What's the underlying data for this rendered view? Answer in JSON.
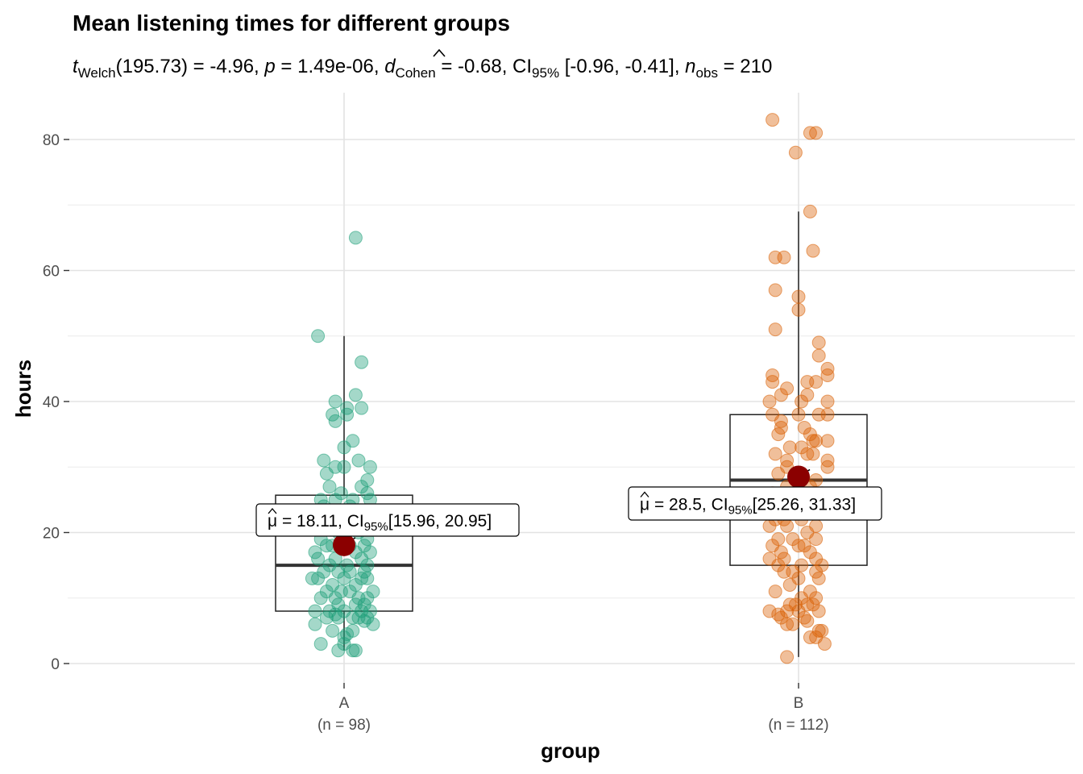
{
  "chart_data": {
    "type": "box-violin-scatter",
    "title": "Mean listening times for different groups",
    "subtitle": {
      "t_symbol": "t",
      "t_sub": "Welch",
      "t_df_stat": "(195.73) = -4.96, ",
      "p_symbol": "p",
      "p_value": " = 1.49e-06, ",
      "d_symbol": "d",
      "d_sub": "Cohen",
      "d_value": " = -0.68, CI",
      "ci_sub": "95%",
      "ci_value": " [-0.96, -0.41], ",
      "n_symbol": "n",
      "n_sub": "obs",
      "n_value": " = 210"
    },
    "xlabel": "group",
    "ylabel": "hours",
    "ylim": [
      -2,
      87
    ],
    "y_ticks": [
      0,
      20,
      40,
      60,
      80
    ],
    "grid": true,
    "colors": {
      "A": "#1b9e77",
      "B": "#d95f02",
      "mean": "#8b0000"
    },
    "groups": [
      {
        "name": "A",
        "n_label": "(n = 98)",
        "box": {
          "min": 2,
          "q1": 8,
          "median": 15,
          "q3": 25.7,
          "max": 50
        },
        "mean": 18.11,
        "label": {
          "mu": "μ",
          "eq": " = 18.11, CI",
          "ci_sub": "95%",
          "ci": "[15.96, 20.95]"
        },
        "points": [
          [
            -0.09,
            50
          ],
          [
            0.04,
            65
          ],
          [
            0.06,
            46
          ],
          [
            -0.03,
            40
          ],
          [
            0.04,
            41
          ],
          [
            -0.04,
            38
          ],
          [
            0.01,
            39
          ],
          [
            0.06,
            39
          ],
          [
            -0.03,
            37
          ],
          [
            0.01,
            38
          ],
          [
            0.03,
            34
          ],
          [
            0.0,
            33
          ],
          [
            -0.07,
            31
          ],
          [
            0.05,
            31
          ],
          [
            0.0,
            30
          ],
          [
            -0.03,
            30
          ],
          [
            0.09,
            30
          ],
          [
            -0.06,
            29
          ],
          [
            0.08,
            28
          ],
          [
            0.06,
            27
          ],
          [
            -0.05,
            27
          ],
          [
            -0.01,
            26
          ],
          [
            0.08,
            26
          ],
          [
            0.09,
            25
          ],
          [
            -0.03,
            25
          ],
          [
            0.03,
            25
          ],
          [
            -0.08,
            25
          ],
          [
            -0.07,
            24
          ],
          [
            0.02,
            24
          ],
          [
            0.07,
            23
          ],
          [
            -0.03,
            23
          ],
          [
            -0.08,
            22
          ],
          [
            0.02,
            22
          ],
          [
            0.07,
            21
          ],
          [
            -0.06,
            21
          ],
          [
            -0.02,
            20
          ],
          [
            0.05,
            20
          ],
          [
            -0.08,
            19
          ],
          [
            0.08,
            19
          ],
          [
            0.0,
            19
          ],
          [
            -0.04,
            18
          ],
          [
            0.02,
            18
          ],
          [
            0.07,
            18
          ],
          [
            -0.06,
            18
          ],
          [
            -0.1,
            17
          ],
          [
            0.04,
            17
          ],
          [
            0.09,
            17
          ],
          [
            -0.03,
            16
          ],
          [
            0.06,
            16
          ],
          [
            -0.09,
            16
          ],
          [
            0.01,
            15
          ],
          [
            -0.05,
            15
          ],
          [
            0.08,
            15
          ],
          [
            0.02,
            14
          ],
          [
            -0.07,
            14
          ],
          [
            -0.02,
            14
          ],
          [
            0.07,
            14
          ],
          [
            -0.11,
            13
          ],
          [
            0.06,
            13
          ],
          [
            -0.09,
            13
          ],
          [
            0.0,
            13
          ],
          [
            0.08,
            13
          ],
          [
            -0.04,
            12
          ],
          [
            0.04,
            12
          ],
          [
            -0.06,
            11
          ],
          [
            0.1,
            11
          ],
          [
            0.02,
            11
          ],
          [
            -0.01,
            11
          ],
          [
            0.08,
            10
          ],
          [
            -0.03,
            10
          ],
          [
            -0.08,
            10
          ],
          [
            0.05,
            10
          ],
          [
            -0.02,
            9
          ],
          [
            0.04,
            9
          ],
          [
            0.07,
            9
          ],
          [
            -0.1,
            8
          ],
          [
            -0.05,
            8
          ],
          [
            0.0,
            8
          ],
          [
            0.06,
            8
          ],
          [
            0.09,
            8
          ],
          [
            -0.03,
            7.5
          ],
          [
            0.05,
            7
          ],
          [
            0.08,
            7
          ],
          [
            0.03,
            7
          ],
          [
            -0.06,
            7
          ],
          [
            -0.1,
            6
          ],
          [
            0.1,
            6
          ],
          [
            -0.04,
            5
          ],
          [
            0.03,
            5
          ],
          [
            0.0,
            4
          ],
          [
            -0.08,
            3
          ],
          [
            0.0,
            3
          ],
          [
            0.03,
            2
          ],
          [
            0.04,
            2
          ],
          [
            -0.02,
            2
          ],
          [
            0.07,
            6.5
          ],
          [
            -0.02,
            7
          ],
          [
            0.01,
            4.5
          ]
        ]
      },
      {
        "name": "B",
        "n_label": "(n = 112)",
        "box": {
          "min": 1,
          "q1": 15,
          "median": 28,
          "q3": 38,
          "max": 69
        },
        "mean": 28.5,
        "label": {
          "mu": "μ",
          "eq": " = 28.5, CI",
          "ci_sub": "95%",
          "ci": "[25.26, 31.33]"
        },
        "points": [
          [
            -0.09,
            83
          ],
          [
            0.04,
            81
          ],
          [
            0.06,
            81
          ],
          [
            -0.01,
            78
          ],
          [
            0.04,
            69
          ],
          [
            -0.08,
            62
          ],
          [
            -0.05,
            62
          ],
          [
            0.05,
            63
          ],
          [
            -0.08,
            57
          ],
          [
            0.0,
            56
          ],
          [
            0.0,
            54
          ],
          [
            -0.08,
            51
          ],
          [
            0.07,
            49
          ],
          [
            0.1,
            45
          ],
          [
            0.1,
            44
          ],
          [
            0.1,
            40
          ],
          [
            0.07,
            47
          ],
          [
            -0.09,
            44
          ],
          [
            -0.04,
            42
          ],
          [
            -0.09,
            43
          ],
          [
            0.03,
            43
          ],
          [
            0.06,
            43
          ],
          [
            -0.06,
            41
          ],
          [
            0.03,
            41
          ],
          [
            -0.1,
            40
          ],
          [
            0.01,
            40
          ],
          [
            -0.09,
            38
          ],
          [
            0.07,
            38
          ],
          [
            0.1,
            38
          ],
          [
            0.0,
            38
          ],
          [
            -0.06,
            37
          ],
          [
            -0.06,
            36
          ],
          [
            0.02,
            36
          ],
          [
            0.04,
            35
          ],
          [
            0.06,
            34
          ],
          [
            0.05,
            34
          ],
          [
            -0.07,
            35
          ],
          [
            0.1,
            34
          ],
          [
            -0.03,
            33
          ],
          [
            0.01,
            33
          ],
          [
            -0.08,
            32
          ],
          [
            0.03,
            32
          ],
          [
            0.05,
            32
          ],
          [
            -0.04,
            31
          ],
          [
            0.1,
            31
          ],
          [
            -0.04,
            30
          ],
          [
            0.1,
            30
          ],
          [
            0.0,
            29
          ],
          [
            -0.07,
            29
          ],
          [
            -0.01,
            28
          ],
          [
            0.06,
            28
          ],
          [
            -0.04,
            27
          ],
          [
            0.04,
            27
          ],
          [
            -0.09,
            26
          ],
          [
            0.08,
            26
          ],
          [
            0.0,
            25
          ],
          [
            -0.06,
            25
          ],
          [
            0.05,
            24
          ],
          [
            -0.1,
            23
          ],
          [
            -0.03,
            23
          ],
          [
            0.07,
            23
          ],
          [
            0.01,
            22
          ],
          [
            -0.05,
            22
          ],
          [
            -0.08,
            22
          ],
          [
            0.06,
            21
          ],
          [
            -0.1,
            21
          ],
          [
            -0.04,
            21
          ],
          [
            0.03,
            20
          ],
          [
            0.06,
            19
          ],
          [
            -0.02,
            19
          ],
          [
            -0.07,
            19
          ],
          [
            0.0,
            18
          ],
          [
            -0.09,
            18
          ],
          [
            0.02,
            18
          ],
          [
            -0.06,
            17
          ],
          [
            0.04,
            17
          ],
          [
            -0.1,
            16
          ],
          [
            -0.05,
            16
          ],
          [
            0.06,
            16
          ],
          [
            0.01,
            15
          ],
          [
            -0.07,
            15
          ],
          [
            0.08,
            15
          ],
          [
            -0.02,
            14
          ],
          [
            0.06,
            14
          ],
          [
            -0.05,
            14
          ],
          [
            0.0,
            13
          ],
          [
            0.07,
            13
          ],
          [
            -0.03,
            12
          ],
          [
            0.04,
            11
          ],
          [
            -0.08,
            11
          ],
          [
            0.01,
            10
          ],
          [
            0.06,
            10
          ],
          [
            -0.01,
            9
          ],
          [
            0.05,
            9
          ],
          [
            0.03,
            9
          ],
          [
            -0.03,
            9
          ],
          [
            0.0,
            8
          ],
          [
            -0.04,
            8
          ],
          [
            0.07,
            8
          ],
          [
            -0.1,
            8
          ],
          [
            -0.06,
            7
          ],
          [
            0.02,
            7
          ],
          [
            -0.02,
            6
          ],
          [
            -0.04,
            6
          ],
          [
            0.08,
            5
          ],
          [
            0.07,
            5
          ],
          [
            0.04,
            4
          ],
          [
            0.06,
            4
          ],
          [
            0.09,
            3
          ],
          [
            -0.04,
            1
          ],
          [
            -0.07,
            7.5
          ],
          [
            0.03,
            6.5
          ]
        ]
      }
    ]
  }
}
